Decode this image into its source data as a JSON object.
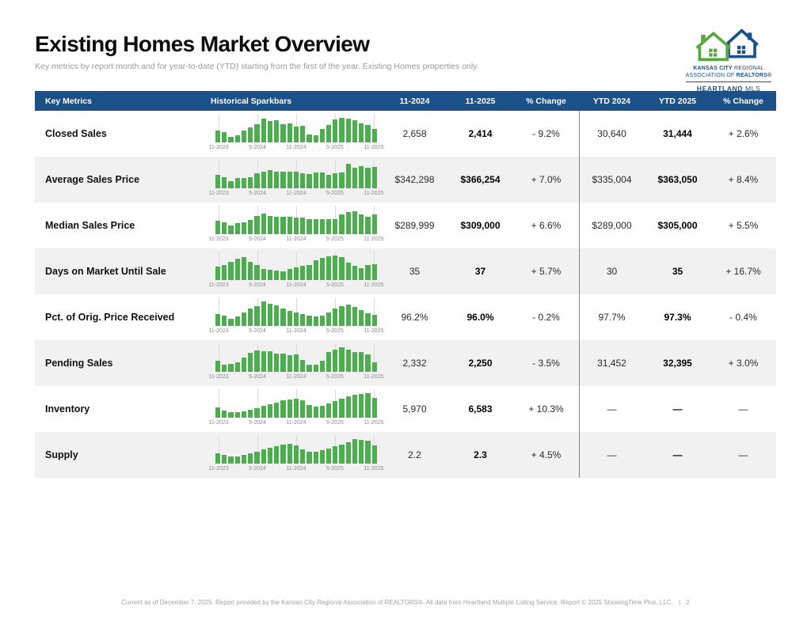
{
  "page": {
    "title": "Existing Homes Market Overview",
    "subtitle": "Key metrics by report month and for year-to-date (YTD) starting from the first of the year. Existing Homes properties only."
  },
  "logo": {
    "line1_bold": "KANSAS CITY",
    "line1_rest": "REGIONAL",
    "line2_rest": "ASSOCIATION OF",
    "line2_bold": "REALTORS®",
    "line3_bold": "HEARTLAND",
    "line3_rest": "MLS"
  },
  "colors": {
    "header_blue": "#1a5188",
    "bar_green": "#4cae4e",
    "row_alt_gray": "#f1f1f1"
  },
  "table": {
    "headers": [
      "Key Metrics",
      "Historical Sparkbars",
      "11-2024",
      "11-2025",
      "% Change",
      "YTD 2024",
      "YTD 2025",
      "% Change"
    ],
    "spark_labels": [
      "11-2023",
      "5-2024",
      "11-2024",
      "5-2025",
      "11-2025"
    ],
    "rows": [
      {
        "name": "Closed Sales",
        "m1": "2,658",
        "m2": "2,414",
        "m_change": "- 9.2%",
        "ytd1": "30,640",
        "ytd2": "31,444",
        "ytd_change": "+ 2.6%",
        "spark": [
          0.5,
          0.42,
          0.22,
          0.28,
          0.48,
          0.62,
          0.74,
          0.97,
          0.86,
          0.9,
          0.75,
          0.78,
          0.65,
          0.68,
          0.32,
          0.3,
          0.55,
          0.72,
          0.92,
          1.0,
          0.96,
          0.9,
          0.78,
          0.72,
          0.55
        ]
      },
      {
        "name": "Average Sales Price",
        "m1": "$342,298",
        "m2": "$366,254",
        "m_change": "+ 7.0%",
        "ytd1": "$335,004",
        "ytd2": "$363,050",
        "ytd_change": "+ 8.4%",
        "spark": [
          0.55,
          0.45,
          0.28,
          0.42,
          0.42,
          0.45,
          0.62,
          0.68,
          0.75,
          0.68,
          0.68,
          0.68,
          0.68,
          0.62,
          0.58,
          0.65,
          0.65,
          0.55,
          0.6,
          0.65,
          1.0,
          0.85,
          0.9,
          0.85,
          0.88
        ]
      },
      {
        "name": "Median Sales Price",
        "m1": "$289,999",
        "m2": "$309,000",
        "m_change": "+ 6.6%",
        "ytd1": "$289,000",
        "ytd2": "$305,000",
        "ytd_change": "+ 5.5%",
        "spark": [
          0.55,
          0.48,
          0.35,
          0.45,
          0.5,
          0.58,
          0.75,
          0.85,
          0.75,
          0.7,
          0.7,
          0.7,
          0.68,
          0.68,
          0.6,
          0.62,
          0.6,
          0.6,
          0.62,
          0.8,
          0.9,
          0.93,
          0.8,
          0.72,
          0.8
        ]
      },
      {
        "name": "Days on Market Until Sale",
        "m1": "35",
        "m2": "37",
        "m_change": "+ 5.7%",
        "ytd1": "30",
        "ytd2": "35",
        "ytd_change": "+ 16.7%",
        "spark": [
          0.55,
          0.62,
          0.75,
          0.88,
          0.95,
          0.75,
          0.62,
          0.45,
          0.42,
          0.38,
          0.35,
          0.45,
          0.52,
          0.58,
          0.6,
          0.8,
          0.9,
          0.97,
          1.0,
          0.95,
          0.72,
          0.58,
          0.48,
          0.6,
          0.65
        ]
      },
      {
        "name": "Pct. of Orig. Price Received",
        "m1": "96.2%",
        "m2": "96.0%",
        "m_change": "- 0.2%",
        "ytd1": "97.7%",
        "ytd2": "97.3%",
        "ytd_change": "- 0.4%",
        "spark": [
          0.5,
          0.42,
          0.3,
          0.4,
          0.55,
          0.7,
          0.8,
          1.0,
          0.9,
          0.85,
          0.72,
          0.6,
          0.55,
          0.5,
          0.42,
          0.38,
          0.42,
          0.55,
          0.7,
          0.8,
          0.88,
          0.78,
          0.65,
          0.52,
          0.45
        ]
      },
      {
        "name": "Pending Sales",
        "m1": "2,332",
        "m2": "2,250",
        "m_change": "- 3.5%",
        "ytd1": "31,452",
        "ytd2": "32,395",
        "ytd_change": "+ 3.0%",
        "spark": [
          0.45,
          0.3,
          0.32,
          0.4,
          0.58,
          0.78,
          0.88,
          0.85,
          0.85,
          0.75,
          0.75,
          0.68,
          0.7,
          0.5,
          0.28,
          0.3,
          0.45,
          0.8,
          0.9,
          1.0,
          0.9,
          0.82,
          0.82,
          0.7,
          0.4
        ]
      },
      {
        "name": "Inventory",
        "m1": "5,970",
        "m2": "6,583",
        "m_change": "+ 10.3%",
        "ytd1": "—",
        "ytd2": "—",
        "ytd_change": "—",
        "spark": [
          0.42,
          0.3,
          0.22,
          0.22,
          0.26,
          0.32,
          0.4,
          0.5,
          0.55,
          0.62,
          0.7,
          0.74,
          0.76,
          0.7,
          0.52,
          0.46,
          0.5,
          0.58,
          0.68,
          0.78,
          0.86,
          0.92,
          0.96,
          1.0,
          0.82
        ]
      },
      {
        "name": "Supply",
        "m1": "2.2",
        "m2": "2.3",
        "m_change": "+ 4.5%",
        "ytd1": "—",
        "ytd2": "—",
        "ytd_change": "—",
        "spark": [
          0.42,
          0.35,
          0.28,
          0.3,
          0.35,
          0.42,
          0.5,
          0.58,
          0.65,
          0.7,
          0.76,
          0.8,
          0.74,
          0.58,
          0.5,
          0.5,
          0.56,
          0.62,
          0.7,
          0.78,
          0.88,
          1.0,
          0.96,
          0.92,
          0.75
        ]
      }
    ]
  },
  "footer": {
    "text": "Current as of December 7, 2025. Report provided by the Kansas City Regional Association of REALTORS®. All data from Heartland Multiple Listing Service. Report © 2025 ShowingTime Plus, LLC.",
    "separator": "|",
    "page": "2"
  }
}
